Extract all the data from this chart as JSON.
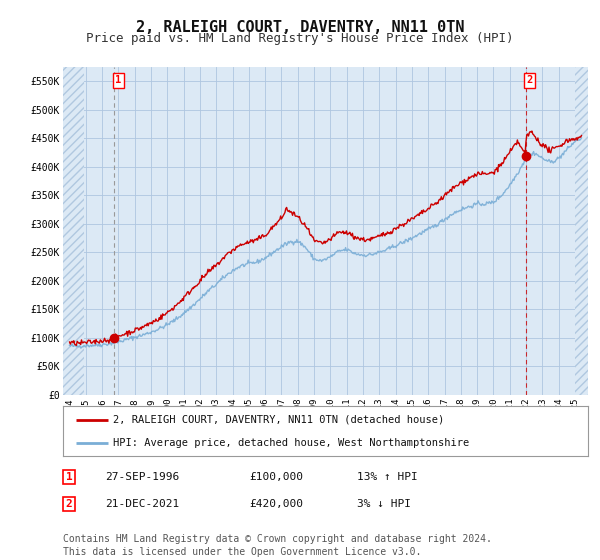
{
  "title": "2, RALEIGH COURT, DAVENTRY, NN11 0TN",
  "subtitle": "Price paid vs. HM Land Registry's House Price Index (HPI)",
  "title_fontsize": 11,
  "subtitle_fontsize": 9,
  "bg_color": "#dce9f5",
  "outer_bg_color": "#ffffff",
  "hatch_color": "#b0c8e0",
  "grid_color": "#aec6e0",
  "hpi_color": "#7aaed6",
  "price_color": "#cc0000",
  "marker_color": "#cc0000",
  "vline1_color": "#999999",
  "vline2_color": "#cc0000",
  "ylim": [
    0,
    575000
  ],
  "yticks": [
    0,
    50000,
    100000,
    150000,
    200000,
    250000,
    300000,
    350000,
    400000,
    450000,
    500000,
    550000
  ],
  "ytick_labels": [
    "£0",
    "£50K",
    "£100K",
    "£150K",
    "£200K",
    "£250K",
    "£300K",
    "£350K",
    "£400K",
    "£450K",
    "£500K",
    "£550K"
  ],
  "xlim_start": 1993.6,
  "xlim_end": 2025.8,
  "hatch_left_end": 1994.9,
  "hatch_right_start": 2025.0,
  "xtick_years": [
    1994,
    1995,
    1996,
    1997,
    1998,
    1999,
    2000,
    2001,
    2002,
    2003,
    2004,
    2005,
    2006,
    2007,
    2008,
    2009,
    2010,
    2011,
    2012,
    2013,
    2014,
    2015,
    2016,
    2017,
    2018,
    2019,
    2020,
    2021,
    2022,
    2023,
    2024,
    2025
  ],
  "purchase1_x": 1996.75,
  "purchase1_y": 100000,
  "purchase1_label": "1",
  "purchase1_date": "27-SEP-1996",
  "purchase1_price": "£100,000",
  "purchase1_hpi": "13% ↑ HPI",
  "purchase2_x": 2021.97,
  "purchase2_y": 420000,
  "purchase2_label": "2",
  "purchase2_date": "21-DEC-2021",
  "purchase2_price": "£420,000",
  "purchase2_hpi": "3% ↓ HPI",
  "legend_line1": "2, RALEIGH COURT, DAVENTRY, NN11 0TN (detached house)",
  "legend_line2": "HPI: Average price, detached house, West Northamptonshire",
  "footnote": "Contains HM Land Registry data © Crown copyright and database right 2024.\nThis data is licensed under the Open Government Licence v3.0.",
  "footnote_fontsize": 7
}
